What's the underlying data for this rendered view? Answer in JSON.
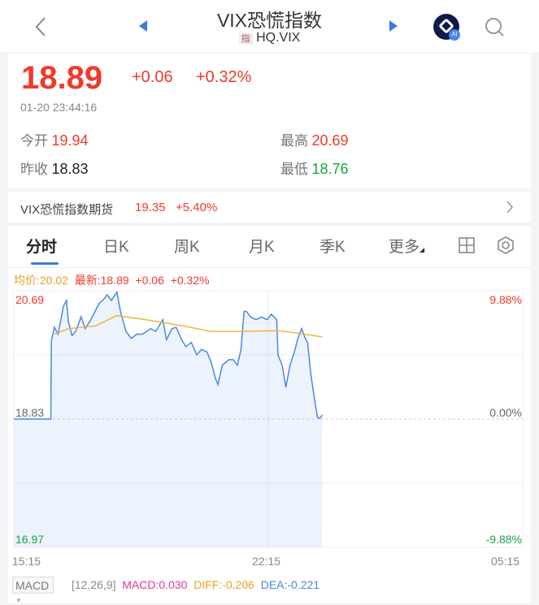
{
  "header": {
    "title": "VIX恐慌指数",
    "badge": "指",
    "code": "HQ.VIX",
    "ai_label": "AI"
  },
  "quote": {
    "price": "18.89",
    "change": "+0.06",
    "change_pct": "+0.32%",
    "time": "01-20 23:44:16",
    "open_label": "今开",
    "open": "19.94",
    "high_label": "最高",
    "high": "20.69",
    "prev_close_label": "昨收",
    "prev_close": "18.83",
    "low_label": "最低",
    "low": "18.76"
  },
  "futures": {
    "label": "VIX恐慌指数期货",
    "price": "19.35",
    "change_pct": "+5.40%"
  },
  "tabs": [
    {
      "label": "分时",
      "active": true
    },
    {
      "label": "日K"
    },
    {
      "label": "周K"
    },
    {
      "label": "月K"
    },
    {
      "label": "季K"
    },
    {
      "label": "更多"
    }
  ],
  "info": {
    "avg": "均价:20.02",
    "latest": "最新:18.89",
    "change": "+0.06",
    "change_pct": "+0.32%"
  },
  "colors": {
    "up": "#f0392b",
    "down": "#1aa34a",
    "price_line": "#4a86e8",
    "avg_line": "#f0b53c",
    "accent": "#3a7be0"
  },
  "chart_data": {
    "type": "line",
    "x_ticks": [
      "15:15",
      "22:15",
      "05:15"
    ],
    "xlim": [
      "15:15",
      "05:15"
    ],
    "ylim": [
      16.97,
      20.69
    ],
    "prev_close": 18.83,
    "y_labels_left": [
      "20.69",
      "18.83",
      "16.97"
    ],
    "y_labels_right": [
      "9.88%",
      "0.00%",
      "-9.88%"
    ],
    "series": [
      {
        "key": "price",
        "points": [
          [
            "15:15",
            18.83
          ],
          [
            "16:16",
            18.83
          ],
          [
            "16:17",
            19.96
          ],
          [
            "16:22",
            20.16
          ],
          [
            "16:28",
            20.06
          ],
          [
            "16:37",
            20.47
          ],
          [
            "16:42",
            20.55
          ],
          [
            "16:45",
            20.24
          ],
          [
            "16:51",
            20.04
          ],
          [
            "16:57",
            20.1
          ],
          [
            "17:06",
            20.31
          ],
          [
            "17:13",
            20.14
          ],
          [
            "17:22",
            20.27
          ],
          [
            "17:29",
            20.39
          ],
          [
            "17:36",
            20.51
          ],
          [
            "17:42",
            20.55
          ],
          [
            "17:49",
            20.63
          ],
          [
            "17:56",
            20.55
          ],
          [
            "18:05",
            20.67
          ],
          [
            "18:11",
            20.39
          ],
          [
            "18:20",
            20.1
          ],
          [
            "18:29",
            20.0
          ],
          [
            "18:38",
            20.06
          ],
          [
            "18:47",
            20.06
          ],
          [
            "19:01",
            20.14
          ],
          [
            "19:09",
            20.1
          ],
          [
            "19:21",
            20.27
          ],
          [
            "19:27",
            19.98
          ],
          [
            "19:36",
            20.14
          ],
          [
            "19:43",
            20.16
          ],
          [
            "19:52",
            19.98
          ],
          [
            "19:59",
            19.88
          ],
          [
            "20:08",
            19.94
          ],
          [
            "20:17",
            19.76
          ],
          [
            "20:25",
            19.84
          ],
          [
            "20:34",
            19.8
          ],
          [
            "20:41",
            19.65
          ],
          [
            "20:48",
            19.41
          ],
          [
            "20:52",
            19.33
          ],
          [
            "20:59",
            19.61
          ],
          [
            "21:10",
            19.69
          ],
          [
            "21:17",
            19.69
          ],
          [
            "21:24",
            19.61
          ],
          [
            "21:30",
            19.84
          ],
          [
            "21:35",
            20.39
          ],
          [
            "21:39",
            20.39
          ],
          [
            "21:46",
            20.31
          ],
          [
            "21:55",
            20.27
          ],
          [
            "22:04",
            20.31
          ],
          [
            "22:13",
            20.27
          ],
          [
            "22:20",
            20.35
          ],
          [
            "22:29",
            20.27
          ],
          [
            "22:31",
            19.76
          ],
          [
            "22:38",
            19.61
          ],
          [
            "22:44",
            19.29
          ],
          [
            "22:51",
            19.61
          ],
          [
            "22:58",
            19.8
          ],
          [
            "23:04",
            20.0
          ],
          [
            "23:10",
            20.14
          ],
          [
            "23:16",
            20.0
          ],
          [
            "23:20",
            19.94
          ],
          [
            "23:25",
            19.49
          ],
          [
            "23:31",
            19.14
          ],
          [
            "23:36",
            18.86
          ],
          [
            "23:40",
            18.84
          ],
          [
            "23:44",
            18.89
          ]
        ]
      },
      {
        "key": "avg",
        "points": [
          [
            "16:22",
            20.06
          ],
          [
            "16:45",
            20.14
          ],
          [
            "17:30",
            20.18
          ],
          [
            "18:05",
            20.33
          ],
          [
            "19:00",
            20.26
          ],
          [
            "20:00",
            20.17
          ],
          [
            "20:40",
            20.1
          ],
          [
            "21:30",
            20.1
          ],
          [
            "22:30",
            20.11
          ],
          [
            "23:00",
            20.08
          ],
          [
            "23:44",
            20.02
          ]
        ]
      }
    ]
  },
  "macd": {
    "selector": "MACD",
    "params": "[12,26,9]",
    "macd": "MACD:0.030",
    "diff": "DIFF:-0.206",
    "dea": "DEA:-0.221"
  }
}
